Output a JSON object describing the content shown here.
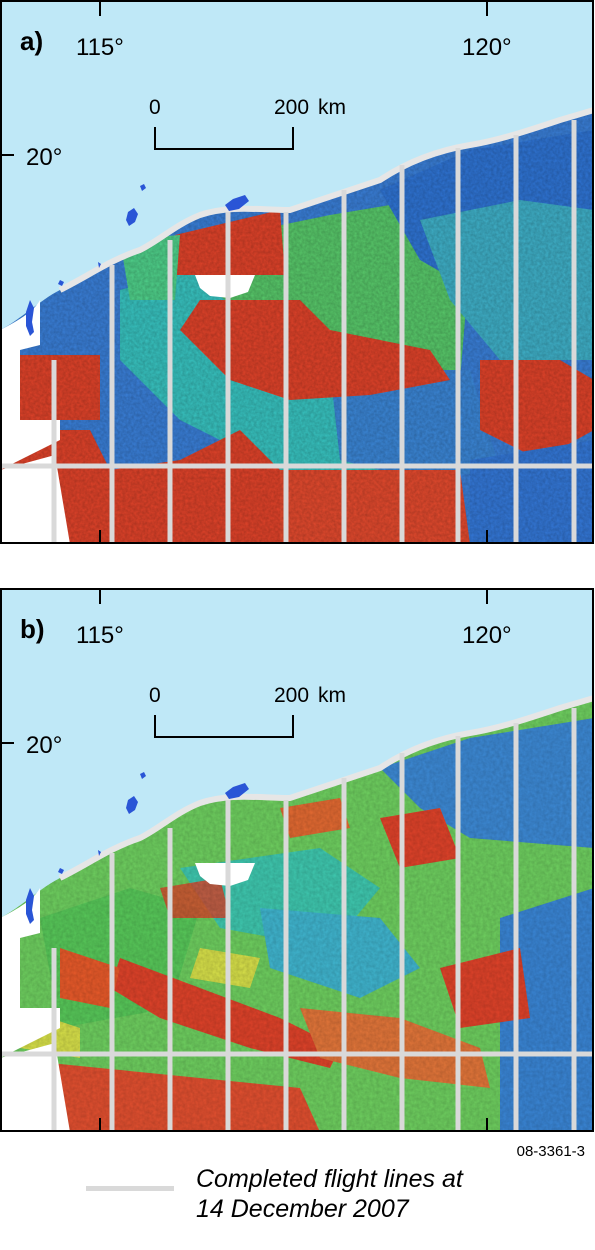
{
  "panels": [
    {
      "label": "a)",
      "longitudes": [
        "115°",
        "120°"
      ],
      "latitude": "20°",
      "scale": {
        "start": "0",
        "end": "200",
        "unit": "km"
      }
    },
    {
      "label": "b)",
      "longitudes": [
        "115°",
        "120°"
      ],
      "latitude": "20°",
      "scale": {
        "start": "0",
        "end": "200",
        "unit": "km"
      }
    }
  ],
  "figure_id": "08-3361-3",
  "legend": {
    "line_1": "Completed flight lines at",
    "line_2": "14 December 2007"
  },
  "colors": {
    "ocean": "#bfe8f7",
    "land_white": "#ffffff",
    "flight_line": "#d9d9d9",
    "red": "#e0432a",
    "green": "#5fd160",
    "cyan": "#2fd0c8",
    "blue": "#2c6fd6",
    "yellow": "#d8e14a"
  }
}
